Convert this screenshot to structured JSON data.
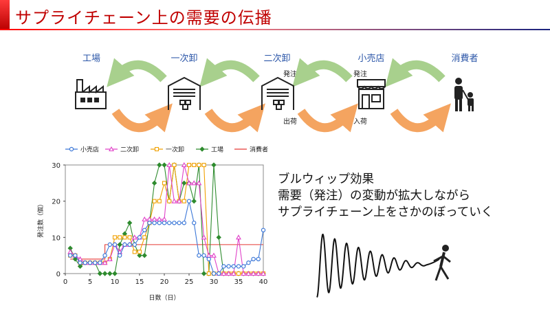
{
  "title": "サプライチェーン上の需要の伝播",
  "stages": [
    "工場",
    "一次卸",
    "二次卸",
    "小売店",
    "消費者"
  ],
  "flow_labels": {
    "order1": "発注",
    "order2": "発注",
    "ship": "出荷",
    "receive": "入荷"
  },
  "icons": {
    "factory": "factory-icon",
    "warehouse1": "warehouse-icon",
    "warehouse2": "warehouse-icon",
    "store": "store-icon",
    "people": "family-icon"
  },
  "colors": {
    "title": "#c00000",
    "stage_label": "#2b56a8",
    "arrow_green": "#a8d08d",
    "arrow_orange": "#f4a460",
    "retail": "#3c78d8",
    "wholesale2": "#e040c8",
    "wholesale1": "#f0a000",
    "factory": "#2e8b2e",
    "consumer": "#e53935"
  },
  "message": [
    "ブルウィップ効果",
    "需要（発注）の変動が拡大しながら",
    "サプライチェーン上をさかのぼっていく"
  ],
  "chart_data": {
    "type": "line",
    "xlabel": "日数（日）",
    "ylabel": "発注数（個）",
    "xlim": [
      0,
      40
    ],
    "ylim": [
      0,
      30
    ],
    "xticks": [
      "0",
      "5",
      "10",
      "15",
      "20",
      "25",
      "30",
      "35",
      "40"
    ],
    "yticks": [
      "0",
      "10",
      "20",
      "30"
    ],
    "x": [
      1,
      2,
      3,
      4,
      5,
      6,
      7,
      8,
      9,
      10,
      11,
      12,
      13,
      14,
      15,
      16,
      17,
      18,
      19,
      20,
      21,
      22,
      23,
      24,
      25,
      26,
      27,
      28,
      29,
      30,
      31,
      32,
      33,
      34,
      35,
      36,
      37,
      38,
      39,
      40
    ],
    "series": [
      {
        "name": "小売店",
        "marker": "circle",
        "color": "#3c78d8",
        "values": [
          5,
          5,
          3,
          3,
          3,
          3,
          3,
          5,
          8,
          8,
          5,
          8,
          8,
          8,
          10,
          12,
          14,
          14,
          14,
          14,
          14,
          14,
          14,
          14,
          20,
          14,
          5,
          5,
          4,
          0,
          0,
          2,
          2,
          2,
          2,
          2,
          3,
          4,
          4,
          12
        ]
      },
      {
        "name": "二次卸",
        "marker": "triangle",
        "color": "#e040c8",
        "values": [
          6,
          5,
          4,
          3,
          3,
          3,
          3,
          3,
          4,
          8,
          6,
          8,
          8,
          10,
          10,
          15,
          15,
          15,
          15,
          15,
          30,
          20,
          20,
          30,
          25,
          25,
          25,
          10,
          5,
          5,
          0,
          0,
          0,
          0,
          10,
          0,
          0,
          0,
          0,
          0
        ]
      },
      {
        "name": "一次卸",
        "marker": "square",
        "color": "#f0a000",
        "values": [
          5,
          5,
          3,
          3,
          3,
          3,
          3,
          3,
          4,
          10,
          10,
          10,
          10,
          6,
          6,
          10,
          14,
          20,
          20,
          25,
          20,
          30,
          20,
          20,
          30,
          30,
          30,
          30,
          0,
          0,
          0,
          0,
          0,
          0,
          0,
          0,
          0,
          0,
          0,
          0
        ]
      },
      {
        "name": "工場",
        "marker": "diamond",
        "color": "#2e8b2e",
        "values": [
          7,
          4,
          2,
          3,
          3,
          3,
          0,
          0,
          0,
          0,
          8,
          11,
          14,
          8,
          5,
          5,
          14,
          25,
          30,
          30,
          20,
          30,
          20,
          25,
          25,
          20,
          30,
          0,
          0,
          30,
          10,
          0,
          0,
          0,
          0,
          0,
          0,
          0,
          0,
          0
        ]
      },
      {
        "name": "消費者",
        "marker": "none",
        "color": "#e53935",
        "values": [
          4,
          4,
          4,
          4,
          4,
          4,
          4,
          8,
          8,
          8,
          8,
          8,
          8,
          8,
          8,
          8,
          8,
          8,
          8,
          8,
          8,
          8,
          8,
          8,
          8,
          8,
          8,
          8,
          8,
          8,
          8,
          8,
          8,
          8,
          8,
          8,
          8,
          8,
          8,
          8
        ]
      }
    ]
  }
}
